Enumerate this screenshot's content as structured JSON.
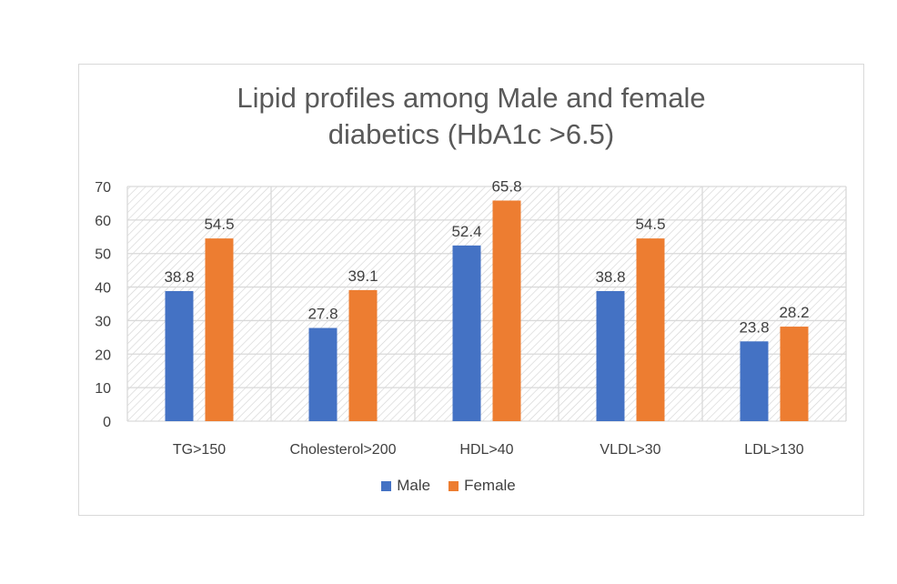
{
  "chart_data": {
    "type": "bar",
    "title": "Lipid profiles among Male and female diabetics (HbA1c >6.5)",
    "title_lines": [
      "Lipid profiles among Male and female",
      "diabetics (HbA1c >6.5)"
    ],
    "categories": [
      "TG>150",
      "Cholesterol>200",
      "HDL>40",
      "VLDL>30",
      "LDL>130"
    ],
    "series": [
      {
        "name": "Male",
        "color": "#4472C4",
        "values": [
          38.8,
          27.8,
          52.4,
          38.8,
          23.8
        ]
      },
      {
        "name": "Female",
        "color": "#ED7D31",
        "values": [
          54.5,
          39.1,
          65.8,
          54.5,
          28.2
        ]
      }
    ],
    "ylim": [
      0,
      70
    ],
    "yticks": [
      0,
      10,
      20,
      30,
      40,
      50,
      60,
      70
    ],
    "xlabel": "",
    "ylabel": "",
    "grid": true,
    "legend": "bottom",
    "data_labels": true
  }
}
